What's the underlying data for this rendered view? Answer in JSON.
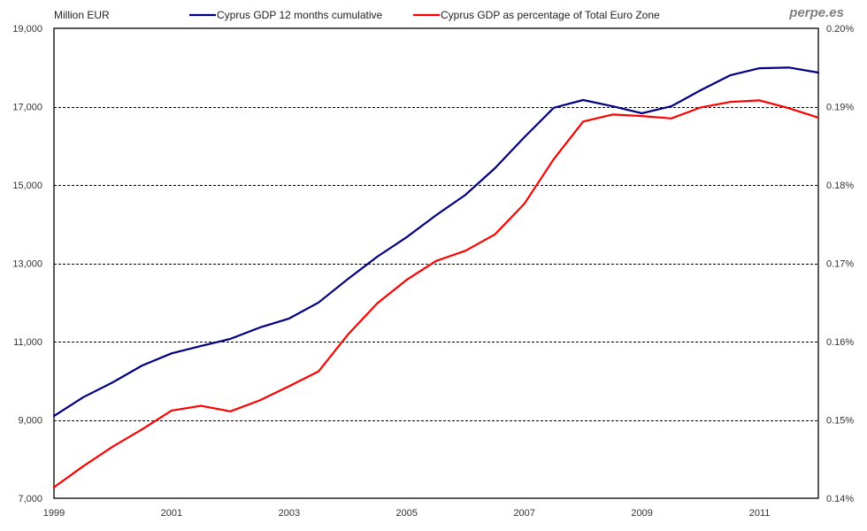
{
  "brand": "perpe.es",
  "chart_data": {
    "type": "line",
    "title": "",
    "left_axis": {
      "label": "Million EUR",
      "ylim": [
        7000,
        19000
      ],
      "ticks": [
        7000,
        9000,
        11000,
        13000,
        15000,
        17000,
        19000
      ],
      "tick_labels": [
        "7,000",
        "9,000",
        "11,000",
        "13,000",
        "15,000",
        "17,000",
        "19,000"
      ]
    },
    "right_axis": {
      "label": "",
      "ylim": [
        0.14,
        0.2
      ],
      "ticks": [
        0.14,
        0.15,
        0.16,
        0.17,
        0.18,
        0.19,
        0.2
      ],
      "tick_labels": [
        "0.14%",
        "0.15%",
        "0.16%",
        "0.17%",
        "0.18%",
        "0.19%",
        "0.20%"
      ]
    },
    "x_axis": {
      "xlim": [
        1999,
        2012
      ],
      "ticks": [
        1999,
        2001,
        2003,
        2005,
        2007,
        2009,
        2011
      ],
      "tick_labels": [
        "1999",
        "2001",
        "2003",
        "2005",
        "2007",
        "2009",
        "2011"
      ]
    },
    "grid": "horizontal dashed",
    "legend_position": "top",
    "x": [
      1999.0,
      1999.5,
      2000.0,
      2000.5,
      2001.0,
      2001.5,
      2002.0,
      2002.5,
      2003.0,
      2003.5,
      2004.0,
      2004.5,
      2005.0,
      2005.5,
      2006.0,
      2006.5,
      2007.0,
      2007.5,
      2008.0,
      2008.5,
      2009.0,
      2009.5,
      2010.0,
      2010.5,
      2011.0,
      2011.5,
      2012.0
    ],
    "series": [
      {
        "name": "Cyprus GDP 12 months cumulative",
        "axis": "left",
        "color": "#000080",
        "values": [
          9100,
          9580,
          9960,
          10390,
          10700,
          10890,
          11070,
          11360,
          11590,
          12000,
          12600,
          13170,
          13670,
          14230,
          14750,
          15430,
          16220,
          16970,
          17170,
          17010,
          16830,
          17010,
          17420,
          17800,
          17980,
          18000,
          17870
        ]
      },
      {
        "name": "Cyprus GDP as percentage of Total Euro Zone",
        "axis": "right",
        "color": "#ff0000",
        "values": [
          0.1414,
          0.1441,
          0.1466,
          0.1488,
          0.1512,
          0.1518,
          0.1511,
          0.1525,
          0.1543,
          0.1562,
          0.1609,
          0.1649,
          0.1679,
          0.1703,
          0.1716,
          0.1737,
          0.1776,
          0.1833,
          0.1881,
          0.189,
          0.1888,
          0.1885,
          0.1899,
          0.1906,
          0.1908,
          0.1898,
          0.1886
        ]
      }
    ]
  }
}
